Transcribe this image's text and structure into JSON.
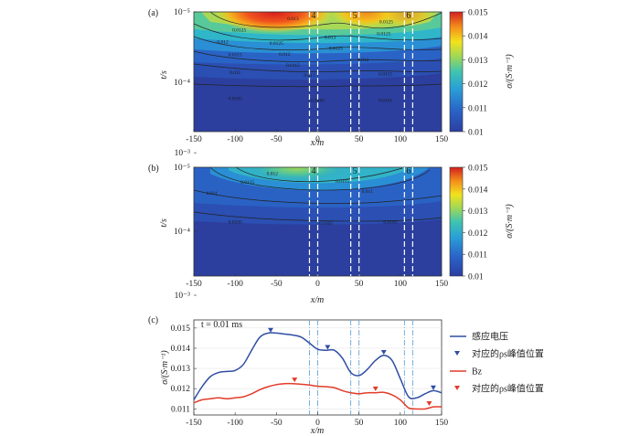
{
  "panels": {
    "a": {
      "label": "(a)"
    },
    "b": {
      "label": "(b)"
    },
    "c": {
      "label": "(c)"
    }
  },
  "chart_data": [
    {
      "type": "heatmap",
      "panel": "a",
      "xlabel": "x/m",
      "ylabel": "t/s",
      "xlim": [
        -150,
        150
      ],
      "xticks": [
        "-150",
        "-100",
        "-50",
        "0",
        "50",
        "100",
        "150"
      ],
      "ylim_log": [
        -5,
        -3.3
      ],
      "yticks": [
        {
          "exp": -5,
          "label": "10⁻⁵"
        },
        {
          "exp": -4,
          "label": "10⁻⁴"
        },
        {
          "exp": -3,
          "label": "10⁻³"
        }
      ],
      "colorbar": {
        "label": "σ/(S·m⁻¹)",
        "min": 0.01,
        "max": 0.015,
        "ticks": [
          "0.015",
          "0.014",
          "0.013",
          "0.012",
          "0.011",
          "0.01"
        ]
      },
      "contour_labels": [
        {
          "x": -95,
          "exp": -4.72,
          "text": "0.0125"
        },
        {
          "x": -30,
          "exp": -4.88,
          "text": "0.013"
        },
        {
          "x": -115,
          "exp": -4.55,
          "text": "0.012"
        },
        {
          "x": -50,
          "exp": -4.53,
          "text": "0.0125"
        },
        {
          "x": 15,
          "exp": -4.62,
          "text": "0.013"
        },
        {
          "x": 83,
          "exp": -4.84,
          "text": "0.0125"
        },
        {
          "x": -100,
          "exp": -4.37,
          "text": "0.0115"
        },
        {
          "x": -40,
          "exp": -4.38,
          "text": "0.012"
        },
        {
          "x": 22,
          "exp": -4.46,
          "text": "0.0125"
        },
        {
          "x": 80,
          "exp": -4.67,
          "text": "0.0125"
        },
        {
          "x": -30,
          "exp": -4.22,
          "text": "0.0115"
        },
        {
          "x": 55,
          "exp": -4.3,
          "text": "0.012"
        },
        {
          "x": -100,
          "exp": -4.12,
          "text": "0.011"
        },
        {
          "x": -10,
          "exp": -4.08,
          "text": "0.011"
        },
        {
          "x": 82,
          "exp": -4.1,
          "text": "0.0115"
        },
        {
          "x": -100,
          "exp": -3.75,
          "text": "0.0105"
        },
        {
          "x": 0,
          "exp": -3.72,
          "text": "0.0105"
        },
        {
          "x": 82,
          "exp": -3.72,
          "text": "0.0105"
        }
      ],
      "dashed_line_x": [
        -10,
        0,
        40,
        50,
        105,
        115
      ],
      "line_labels": [
        {
          "x": -5,
          "text": "4"
        },
        {
          "x": 45,
          "text": "5"
        },
        {
          "x": 110,
          "text": "6"
        }
      ]
    },
    {
      "type": "heatmap",
      "panel": "b",
      "xlabel": "x/m",
      "ylabel": "t/s",
      "xlim": [
        -150,
        150
      ],
      "xticks": [
        "-150",
        "-100",
        "-50",
        "0",
        "50",
        "100",
        "150"
      ],
      "ylim_log": [
        -5,
        -3.3
      ],
      "yticks": [
        {
          "exp": -5,
          "label": "10⁻⁵"
        },
        {
          "exp": -4,
          "label": "10⁻⁴"
        },
        {
          "exp": -3,
          "label": "10⁻³"
        }
      ],
      "colorbar": {
        "label": "σ/(S·m⁻¹)",
        "min": 0.01,
        "max": 0.015,
        "ticks": [
          "0.015",
          "0.014",
          "0.013",
          "0.012",
          "0.011",
          "0.01"
        ]
      },
      "contour_labels": [
        {
          "x": -55,
          "exp": -4.88,
          "text": "0.012"
        },
        {
          "x": 30,
          "exp": -4.76,
          "text": "0.0115"
        },
        {
          "x": -85,
          "exp": -4.74,
          "text": "0.0115"
        },
        {
          "x": -128,
          "exp": -4.57,
          "text": "0.011"
        },
        {
          "x": 60,
          "exp": -4.6,
          "text": "0.011"
        },
        {
          "x": -100,
          "exp": -4.12,
          "text": "0.0105"
        },
        {
          "x": 10,
          "exp": -4.1,
          "text": "0.0105"
        },
        {
          "x": 88,
          "exp": -4.12,
          "text": "0.0105"
        }
      ],
      "dashed_line_x": [
        -10,
        0,
        40,
        50,
        105,
        115
      ],
      "line_labels": [
        {
          "x": -5,
          "text": "4"
        },
        {
          "x": 45,
          "text": "5"
        },
        {
          "x": 110,
          "text": "6"
        }
      ]
    },
    {
      "type": "line",
      "panel": "c",
      "annotation": "t = 0.01 ms",
      "xlabel": "x/m",
      "ylabel": "σ/(S·m⁻¹)",
      "xlim": [
        -150,
        150
      ],
      "ylim": [
        0.0107,
        0.0154
      ],
      "xticks": [
        -150,
        -100,
        -50,
        0,
        50,
        100,
        150
      ],
      "yticks": [
        0.011,
        0.012,
        0.013,
        0.014,
        0.015
      ],
      "series": [
        {
          "name": "感应电压",
          "color": "#2f4ea3",
          "x": [
            -150,
            -140,
            -130,
            -120,
            -110,
            -100,
            -90,
            -80,
            -70,
            -60,
            -50,
            -40,
            -30,
            -20,
            -10,
            0,
            10,
            20,
            30,
            40,
            50,
            60,
            70,
            80,
            90,
            100,
            110,
            120,
            130,
            140,
            150
          ],
          "y": [
            0.01145,
            0.0121,
            0.0126,
            0.0128,
            0.01285,
            0.0129,
            0.0132,
            0.0139,
            0.01455,
            0.01475,
            0.01475,
            0.0147,
            0.01465,
            0.01455,
            0.01425,
            0.01395,
            0.0139,
            0.0139,
            0.0135,
            0.0128,
            0.01265,
            0.01295,
            0.0134,
            0.01365,
            0.0134,
            0.0125,
            0.0116,
            0.01155,
            0.01175,
            0.0119,
            0.0118
          ]
        },
        {
          "name": "Bz",
          "color": "#e23b2a",
          "x": [
            -150,
            -140,
            -130,
            -120,
            -110,
            -100,
            -90,
            -80,
            -70,
            -60,
            -50,
            -40,
            -30,
            -20,
            -10,
            0,
            10,
            20,
            30,
            40,
            50,
            60,
            70,
            80,
            90,
            100,
            110,
            120,
            130,
            140,
            150
          ],
          "y": [
            0.0113,
            0.01145,
            0.0115,
            0.01155,
            0.0115,
            0.01155,
            0.0116,
            0.01175,
            0.01195,
            0.0121,
            0.0122,
            0.01225,
            0.01225,
            0.01222,
            0.01218,
            0.01212,
            0.0121,
            0.01205,
            0.0119,
            0.0118,
            0.01175,
            0.0118,
            0.0118,
            0.01182,
            0.0117,
            0.01145,
            0.01105,
            0.011,
            0.011,
            0.0111,
            0.0111
          ]
        }
      ],
      "markers": [
        {
          "series": 0,
          "x": -57,
          "y": 0.01478
        },
        {
          "series": 0,
          "x": 12,
          "y": 0.01393
        },
        {
          "series": 0,
          "x": 80,
          "y": 0.01368
        },
        {
          "series": 0,
          "x": 140,
          "y": 0.01193
        },
        {
          "series": 1,
          "x": -28,
          "y": 0.01232
        },
        {
          "series": 1,
          "x": 70,
          "y": 0.01188
        },
        {
          "series": 1,
          "x": 135,
          "y": 0.01115
        }
      ],
      "dashed_line_x": [
        -10,
        0,
        40,
        50,
        105,
        115
      ],
      "legend": {
        "position": "right",
        "items": [
          {
            "kind": "line",
            "color": "#2f4ea3",
            "text": "感应电压"
          },
          {
            "kind": "marker",
            "color": "#2f4ea3",
            "text": "对应的ρs峰值位置"
          },
          {
            "kind": "line",
            "color": "#e23b2a",
            "text": "Bz"
          },
          {
            "kind": "marker",
            "color": "#e23b2a",
            "text": "对应的ρs峰值位置"
          }
        ]
      }
    }
  ]
}
